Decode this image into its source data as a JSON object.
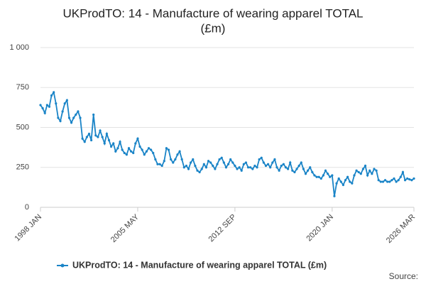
{
  "chart_data": {
    "type": "line",
    "title": "UKProdTO: 14 - Manufacture of wearing apparel TOTAL",
    "subtitle": "(£m)",
    "categories": [
      "1998 JAN",
      null,
      null,
      null,
      null,
      null,
      null,
      null,
      null,
      null,
      null,
      null,
      null,
      null,
      null,
      null,
      null,
      null,
      null,
      null,
      null,
      null,
      null,
      null,
      null,
      null,
      null,
      null,
      null,
      null,
      null,
      null,
      null,
      null,
      null,
      null,
      null,
      null,
      null,
      null,
      null,
      null,
      null,
      null,
      "2005 MAY",
      null,
      null,
      null,
      null,
      null,
      null,
      null,
      null,
      null,
      null,
      null,
      null,
      null,
      null,
      null,
      null,
      null,
      null,
      null,
      null,
      null,
      null,
      null,
      null,
      null,
      null,
      null,
      null,
      null,
      null,
      null,
      null,
      null,
      null,
      null,
      null,
      null,
      null,
      null,
      null,
      null,
      null,
      null,
      "2012 SEP",
      null,
      null,
      null,
      null,
      null,
      null,
      null,
      null,
      null,
      null,
      null,
      null,
      null,
      null,
      null,
      null,
      null,
      null,
      null,
      null,
      null,
      null,
      null,
      null,
      null,
      null,
      null,
      null,
      null,
      null,
      null,
      null,
      null,
      null,
      null,
      null,
      null,
      null,
      null,
      null,
      null,
      null,
      null,
      "2020 JAN",
      null,
      null,
      null,
      null,
      null,
      null,
      null,
      null,
      null,
      null,
      null,
      null,
      null,
      null,
      null,
      null,
      null,
      null,
      null,
      null,
      null,
      null,
      null,
      null,
      null,
      null,
      null,
      null,
      null,
      null,
      null,
      null,
      null,
      null,
      null,
      null,
      "2026 MAR"
    ],
    "series": [
      {
        "name": "UKProdTO: 14 - Manufacture of wearing apparel TOTAL (£m)",
        "color": "#1a84c7",
        "values": [
          640,
          620,
          590,
          640,
          630,
          700,
          720,
          650,
          560,
          540,
          600,
          650,
          670,
          560,
          530,
          560,
          580,
          600,
          560,
          430,
          410,
          440,
          460,
          420,
          580,
          450,
          440,
          480,
          440,
          400,
          460,
          420,
          380,
          400,
          350,
          370,
          410,
          360,
          340,
          330,
          370,
          350,
          340,
          400,
          430,
          380,
          360,
          330,
          350,
          370,
          360,
          340,
          300,
          270,
          270,
          260,
          290,
          370,
          360,
          300,
          280,
          300,
          330,
          350,
          300,
          250,
          260,
          240,
          280,
          300,
          260,
          230,
          220,
          240,
          270,
          250,
          290,
          280,
          260,
          240,
          270,
          300,
          310,
          280,
          250,
          270,
          300,
          280,
          260,
          240,
          250,
          230,
          270,
          280,
          250,
          250,
          240,
          260,
          250,
          300,
          310,
          280,
          260,
          270,
          250,
          280,
          300,
          250,
          230,
          260,
          270,
          250,
          240,
          280,
          230,
          220,
          240,
          260,
          280,
          240,
          210,
          230,
          250,
          220,
          200,
          190,
          190,
          180,
          200,
          230,
          210,
          190,
          200,
          70,
          150,
          180,
          160,
          140,
          170,
          190,
          160,
          150,
          200,
          230,
          220,
          210,
          240,
          260,
          200,
          230,
          210,
          240,
          230,
          170,
          160,
          160,
          170,
          160,
          160,
          170,
          180,
          160,
          170,
          190,
          220,
          170,
          180,
          175,
          170,
          180
        ]
      }
    ],
    "ylim": [
      0,
      1000
    ],
    "yticks": [
      0,
      250,
      500,
      750,
      {
        "value": 1000,
        "label": "1 000"
      }
    ],
    "grid": true,
    "legend": "bottom",
    "source": "Source:"
  }
}
